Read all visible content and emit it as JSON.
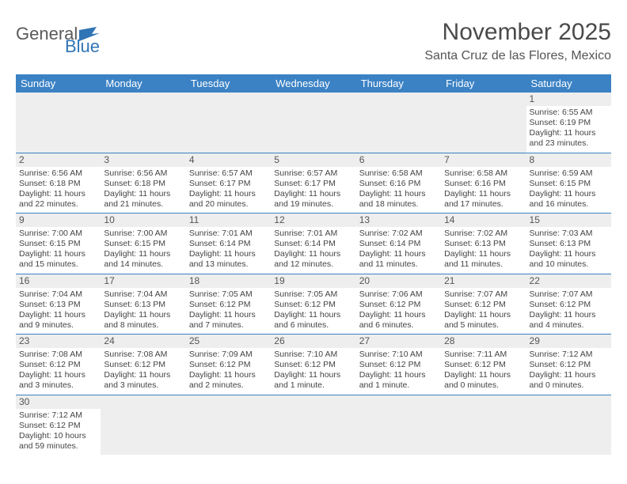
{
  "logo": {
    "word1": "General",
    "word2": "Blue"
  },
  "title": "November 2025",
  "location": "Santa Cruz de las Flores, Mexico",
  "colors": {
    "header_bg": "#3b82c4",
    "header_text": "#ffffff",
    "rule": "#3b82c4",
    "daynum_bg": "#eeeeee",
    "text": "#444444",
    "logo_gray": "#5a5a5a",
    "logo_blue": "#2f74b5"
  },
  "typography": {
    "title_size_pt": 22,
    "location_size_pt": 12,
    "header_size_pt": 10,
    "cell_size_pt": 8
  },
  "day_names": [
    "Sunday",
    "Monday",
    "Tuesday",
    "Wednesday",
    "Thursday",
    "Friday",
    "Saturday"
  ],
  "weeks": [
    [
      {
        "blank": true
      },
      {
        "blank": true
      },
      {
        "blank": true
      },
      {
        "blank": true
      },
      {
        "blank": true
      },
      {
        "blank": true
      },
      {
        "day": "1",
        "sunrise": "Sunrise: 6:55 AM",
        "sunset": "Sunset: 6:19 PM",
        "daylight": "Daylight: 11 hours and 23 minutes."
      }
    ],
    [
      {
        "day": "2",
        "sunrise": "Sunrise: 6:56 AM",
        "sunset": "Sunset: 6:18 PM",
        "daylight": "Daylight: 11 hours and 22 minutes."
      },
      {
        "day": "3",
        "sunrise": "Sunrise: 6:56 AM",
        "sunset": "Sunset: 6:18 PM",
        "daylight": "Daylight: 11 hours and 21 minutes."
      },
      {
        "day": "4",
        "sunrise": "Sunrise: 6:57 AM",
        "sunset": "Sunset: 6:17 PM",
        "daylight": "Daylight: 11 hours and 20 minutes."
      },
      {
        "day": "5",
        "sunrise": "Sunrise: 6:57 AM",
        "sunset": "Sunset: 6:17 PM",
        "daylight": "Daylight: 11 hours and 19 minutes."
      },
      {
        "day": "6",
        "sunrise": "Sunrise: 6:58 AM",
        "sunset": "Sunset: 6:16 PM",
        "daylight": "Daylight: 11 hours and 18 minutes."
      },
      {
        "day": "7",
        "sunrise": "Sunrise: 6:58 AM",
        "sunset": "Sunset: 6:16 PM",
        "daylight": "Daylight: 11 hours and 17 minutes."
      },
      {
        "day": "8",
        "sunrise": "Sunrise: 6:59 AM",
        "sunset": "Sunset: 6:15 PM",
        "daylight": "Daylight: 11 hours and 16 minutes."
      }
    ],
    [
      {
        "day": "9",
        "sunrise": "Sunrise: 7:00 AM",
        "sunset": "Sunset: 6:15 PM",
        "daylight": "Daylight: 11 hours and 15 minutes."
      },
      {
        "day": "10",
        "sunrise": "Sunrise: 7:00 AM",
        "sunset": "Sunset: 6:15 PM",
        "daylight": "Daylight: 11 hours and 14 minutes."
      },
      {
        "day": "11",
        "sunrise": "Sunrise: 7:01 AM",
        "sunset": "Sunset: 6:14 PM",
        "daylight": "Daylight: 11 hours and 13 minutes."
      },
      {
        "day": "12",
        "sunrise": "Sunrise: 7:01 AM",
        "sunset": "Sunset: 6:14 PM",
        "daylight": "Daylight: 11 hours and 12 minutes."
      },
      {
        "day": "13",
        "sunrise": "Sunrise: 7:02 AM",
        "sunset": "Sunset: 6:14 PM",
        "daylight": "Daylight: 11 hours and 11 minutes."
      },
      {
        "day": "14",
        "sunrise": "Sunrise: 7:02 AM",
        "sunset": "Sunset: 6:13 PM",
        "daylight": "Daylight: 11 hours and 11 minutes."
      },
      {
        "day": "15",
        "sunrise": "Sunrise: 7:03 AM",
        "sunset": "Sunset: 6:13 PM",
        "daylight": "Daylight: 11 hours and 10 minutes."
      }
    ],
    [
      {
        "day": "16",
        "sunrise": "Sunrise: 7:04 AM",
        "sunset": "Sunset: 6:13 PM",
        "daylight": "Daylight: 11 hours and 9 minutes."
      },
      {
        "day": "17",
        "sunrise": "Sunrise: 7:04 AM",
        "sunset": "Sunset: 6:13 PM",
        "daylight": "Daylight: 11 hours and 8 minutes."
      },
      {
        "day": "18",
        "sunrise": "Sunrise: 7:05 AM",
        "sunset": "Sunset: 6:12 PM",
        "daylight": "Daylight: 11 hours and 7 minutes."
      },
      {
        "day": "19",
        "sunrise": "Sunrise: 7:05 AM",
        "sunset": "Sunset: 6:12 PM",
        "daylight": "Daylight: 11 hours and 6 minutes."
      },
      {
        "day": "20",
        "sunrise": "Sunrise: 7:06 AM",
        "sunset": "Sunset: 6:12 PM",
        "daylight": "Daylight: 11 hours and 6 minutes."
      },
      {
        "day": "21",
        "sunrise": "Sunrise: 7:07 AM",
        "sunset": "Sunset: 6:12 PM",
        "daylight": "Daylight: 11 hours and 5 minutes."
      },
      {
        "day": "22",
        "sunrise": "Sunrise: 7:07 AM",
        "sunset": "Sunset: 6:12 PM",
        "daylight": "Daylight: 11 hours and 4 minutes."
      }
    ],
    [
      {
        "day": "23",
        "sunrise": "Sunrise: 7:08 AM",
        "sunset": "Sunset: 6:12 PM",
        "daylight": "Daylight: 11 hours and 3 minutes."
      },
      {
        "day": "24",
        "sunrise": "Sunrise: 7:08 AM",
        "sunset": "Sunset: 6:12 PM",
        "daylight": "Daylight: 11 hours and 3 minutes."
      },
      {
        "day": "25",
        "sunrise": "Sunrise: 7:09 AM",
        "sunset": "Sunset: 6:12 PM",
        "daylight": "Daylight: 11 hours and 2 minutes."
      },
      {
        "day": "26",
        "sunrise": "Sunrise: 7:10 AM",
        "sunset": "Sunset: 6:12 PM",
        "daylight": "Daylight: 11 hours and 1 minute."
      },
      {
        "day": "27",
        "sunrise": "Sunrise: 7:10 AM",
        "sunset": "Sunset: 6:12 PM",
        "daylight": "Daylight: 11 hours and 1 minute."
      },
      {
        "day": "28",
        "sunrise": "Sunrise: 7:11 AM",
        "sunset": "Sunset: 6:12 PM",
        "daylight": "Daylight: 11 hours and 0 minutes."
      },
      {
        "day": "29",
        "sunrise": "Sunrise: 7:12 AM",
        "sunset": "Sunset: 6:12 PM",
        "daylight": "Daylight: 11 hours and 0 minutes."
      }
    ],
    [
      {
        "day": "30",
        "sunrise": "Sunrise: 7:12 AM",
        "sunset": "Sunset: 6:12 PM",
        "daylight": "Daylight: 10 hours and 59 minutes."
      },
      {
        "blank": true
      },
      {
        "blank": true
      },
      {
        "blank": true
      },
      {
        "blank": true
      },
      {
        "blank": true
      },
      {
        "blank": true
      }
    ]
  ]
}
